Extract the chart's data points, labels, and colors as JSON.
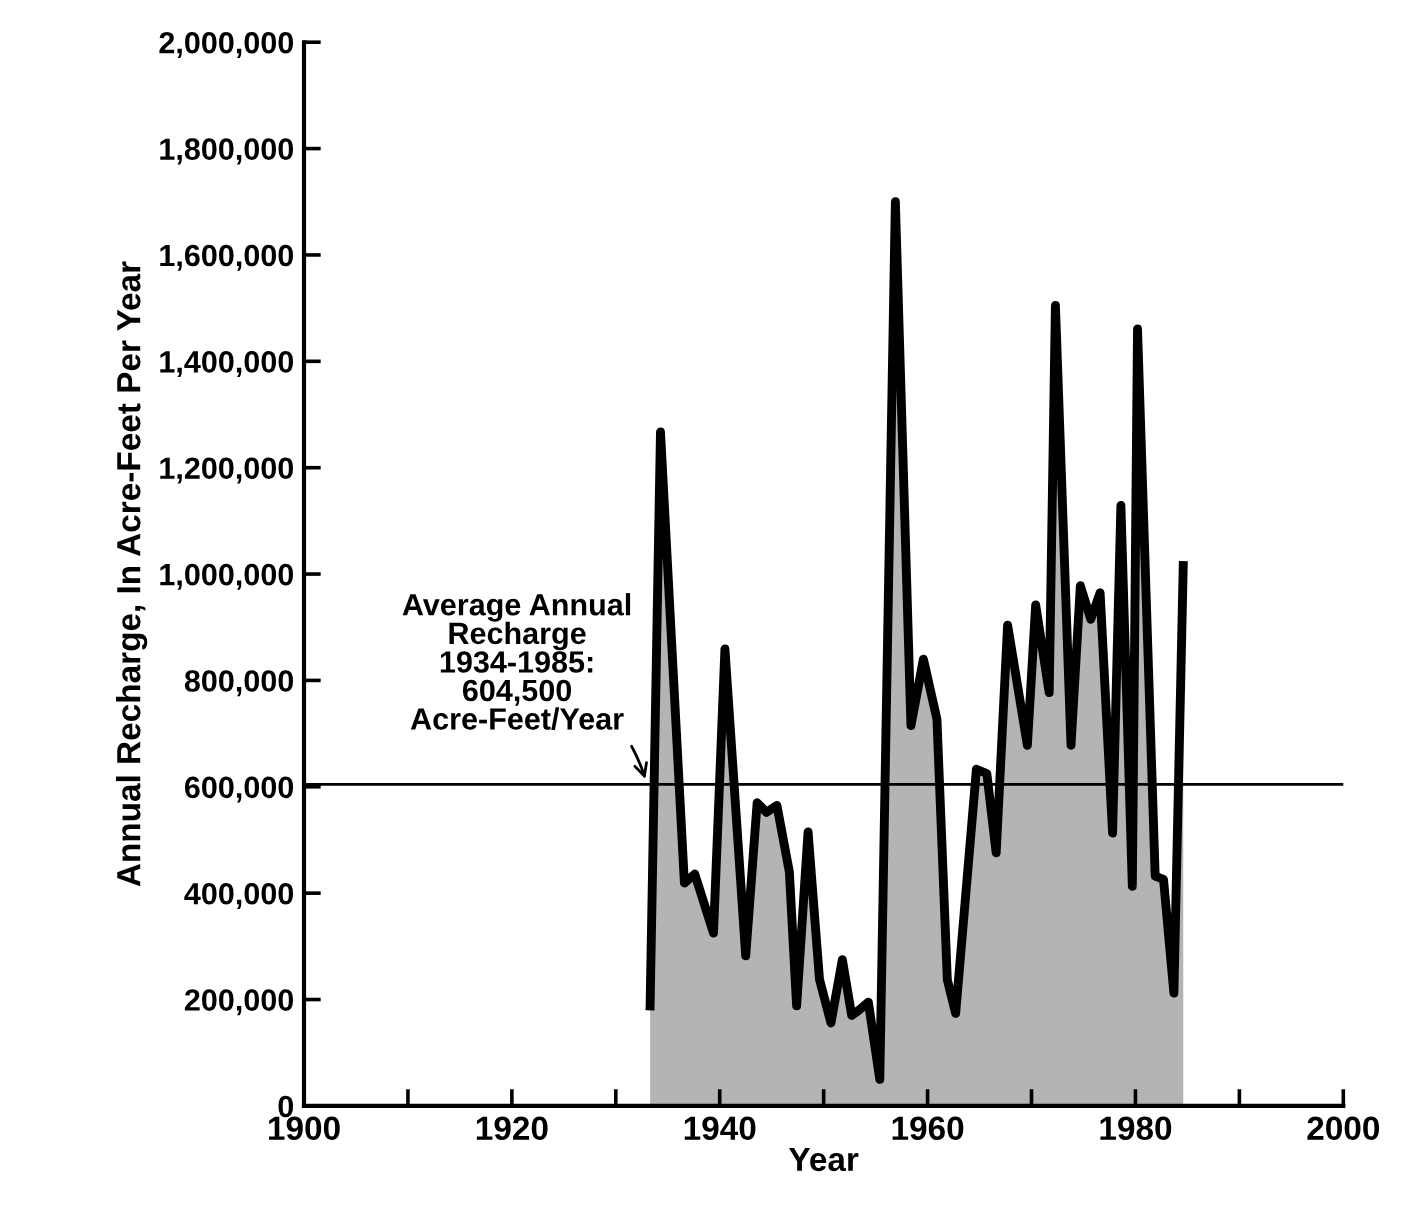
{
  "chart_data": {
    "type": "area",
    "xlabel": "Year",
    "ylabel": "Annual Recharge, In Acre-Feet Per Year",
    "xlim": [
      1900,
      2000
    ],
    "ylim": [
      0,
      2000000
    ],
    "xticks": [
      1900,
      {
        "value": 1910,
        "label": null
      },
      1920,
      {
        "value": 1930,
        "label": null
      },
      1940,
      {
        "value": 1950,
        "label": null
      },
      1960,
      {
        "value": 1970,
        "label": null
      },
      1980,
      {
        "value": 1990,
        "label": null
      },
      2000
    ],
    "yticks": [
      {
        "value": 0,
        "label": "0"
      },
      {
        "value": 200000,
        "label": "200,000"
      },
      {
        "value": 400000,
        "label": "400,000"
      },
      {
        "value": 600000,
        "label": "600,000"
      },
      {
        "value": 800000,
        "label": "800,000"
      },
      {
        "value": 1000000,
        "label": "1,000,000"
      },
      {
        "value": 1200000,
        "label": "1,200,000"
      },
      {
        "value": 1400000,
        "label": "1,400,000"
      },
      {
        "value": 1600000,
        "label": "1,600,000"
      },
      {
        "value": 1800000,
        "label": "1,800,000"
      },
      {
        "value": 2000000,
        "label": "2,000,000"
      }
    ],
    "grid": false,
    "series": [
      {
        "color": "#b4b4b4",
        "x": [
          1933.3,
          1934.3,
          1936.6,
          1937.6,
          1939.4,
          1940.5,
          1942.5,
          1943.6,
          1944.5,
          1945.5,
          1946.7,
          1947.4,
          1948.5,
          1949.6,
          1950.7,
          1951.8,
          1952.7,
          1953.4,
          1954.3,
          1955.4,
          1956.9,
          1958.4,
          1959.6,
          1960.9,
          1961.9,
          1962.7,
          1964.7,
          1965.7,
          1966.6,
          1967.7,
          1969.6,
          1970.4,
          1971.7,
          1972.3,
          1973.8,
          1974.7,
          1975.7,
          1976.6,
          1977.8,
          1978.6,
          1979.7,
          1980.2,
          1981.9,
          1982.7,
          1983.7,
          1984.6
        ],
        "values": [
          188000,
          1267000,
          419000,
          436000,
          325000,
          859000,
          282000,
          570000,
          552000,
          565000,
          440000,
          188000,
          515000,
          238000,
          156000,
          275000,
          170000,
          180000,
          195000,
          50000,
          1700000,
          715000,
          840000,
          727000,
          237000,
          174000,
          633000,
          625000,
          476000,
          904000,
          678000,
          942000,
          777000,
          1505000,
          678000,
          978000,
          915000,
          965000,
          513000,
          1129000,
          413000,
          1461000,
          432000,
          426000,
          212000,
          1016000
        ]
      }
    ],
    "ref_lines": [
      {
        "axis": "y",
        "value": 604500,
        "color": "#000000",
        "line_style": "solid"
      }
    ],
    "annotations": [
      {
        "text": "Average Annual\nRecharge\n1934-1985:\n604,500\nAcre-Feet/Year",
        "x": 1933,
        "y": 604500
      }
    ]
  }
}
